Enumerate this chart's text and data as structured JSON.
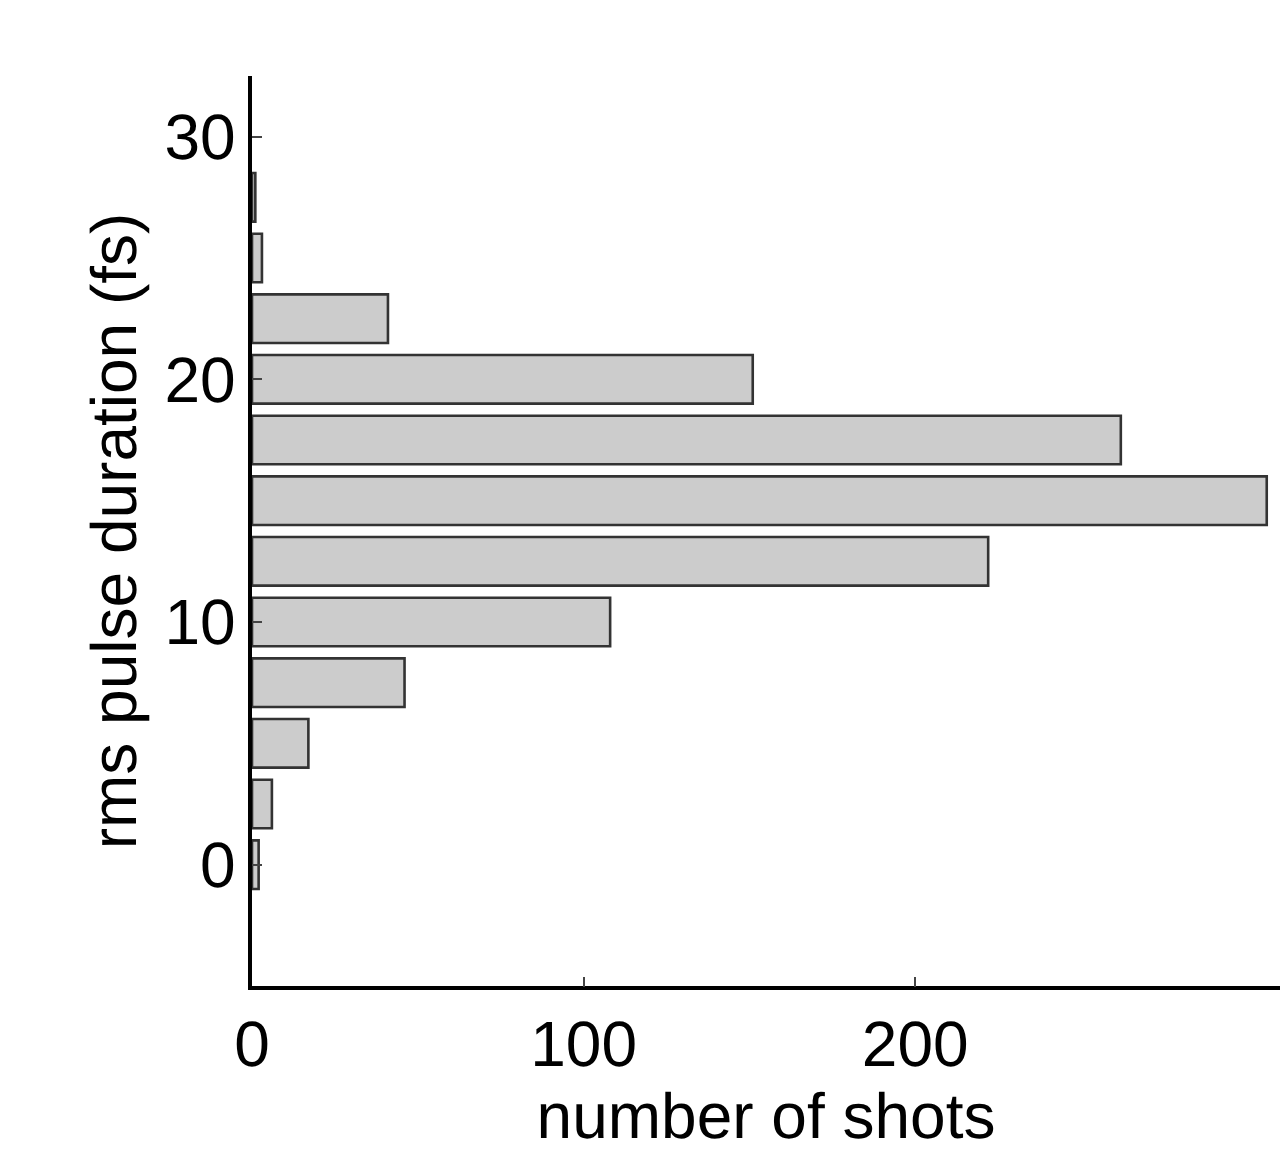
{
  "chart_data": {
    "type": "histogram",
    "orientation": "horizontal",
    "xlabel": "number of shots",
    "ylabel": "rms pulse duration (fs)",
    "bins": [
      -1.25,
      1.25,
      3.75,
      6.25,
      8.75,
      11.25,
      13.75,
      16.25,
      18.75,
      21.25,
      23.75,
      26.25,
      28.75
    ],
    "values": [
      2,
      6,
      17,
      46,
      108,
      222,
      306,
      262,
      151,
      41,
      3,
      1
    ],
    "color": "#cccccc",
    "xlim": [
      0,
      310
    ],
    "xticks": [
      0,
      100,
      200
    ],
    "ylim": [
      -5,
      32.5
    ],
    "yticks": [
      0,
      10,
      20,
      30
    ]
  }
}
